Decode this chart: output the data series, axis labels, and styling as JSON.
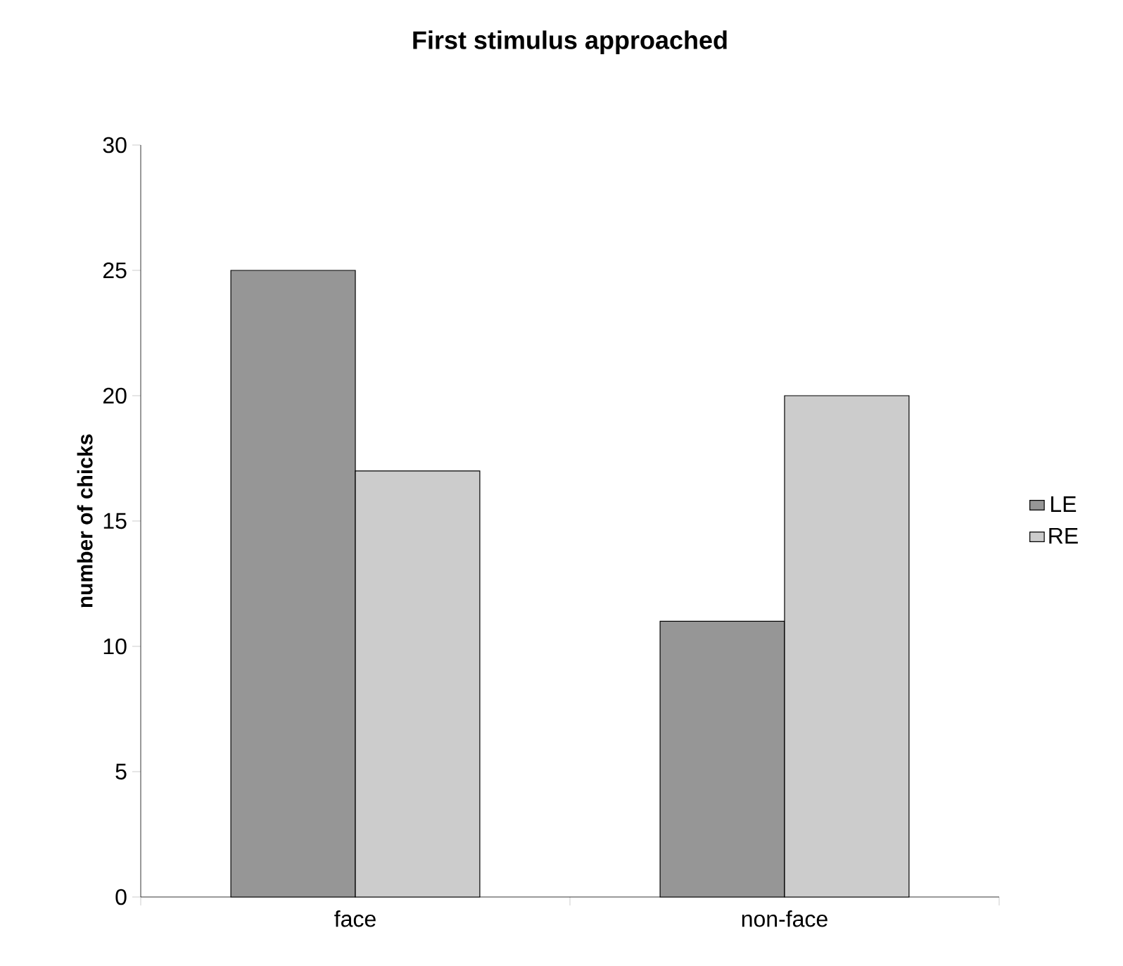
{
  "chart_data": {
    "type": "bar",
    "title": "First stimulus approached",
    "ylabel": "number of chicks",
    "categories": [
      "face",
      "non-face"
    ],
    "series": [
      {
        "name": "LE",
        "color": "#969696",
        "values": [
          25,
          11
        ]
      },
      {
        "name": "RE",
        "color": "#cccccc",
        "values": [
          17,
          20
        ]
      }
    ],
    "ylim": [
      0,
      30
    ],
    "yticks": [
      0,
      5,
      10,
      15,
      20,
      25,
      30
    ],
    "grid": false,
    "legend": "right"
  }
}
